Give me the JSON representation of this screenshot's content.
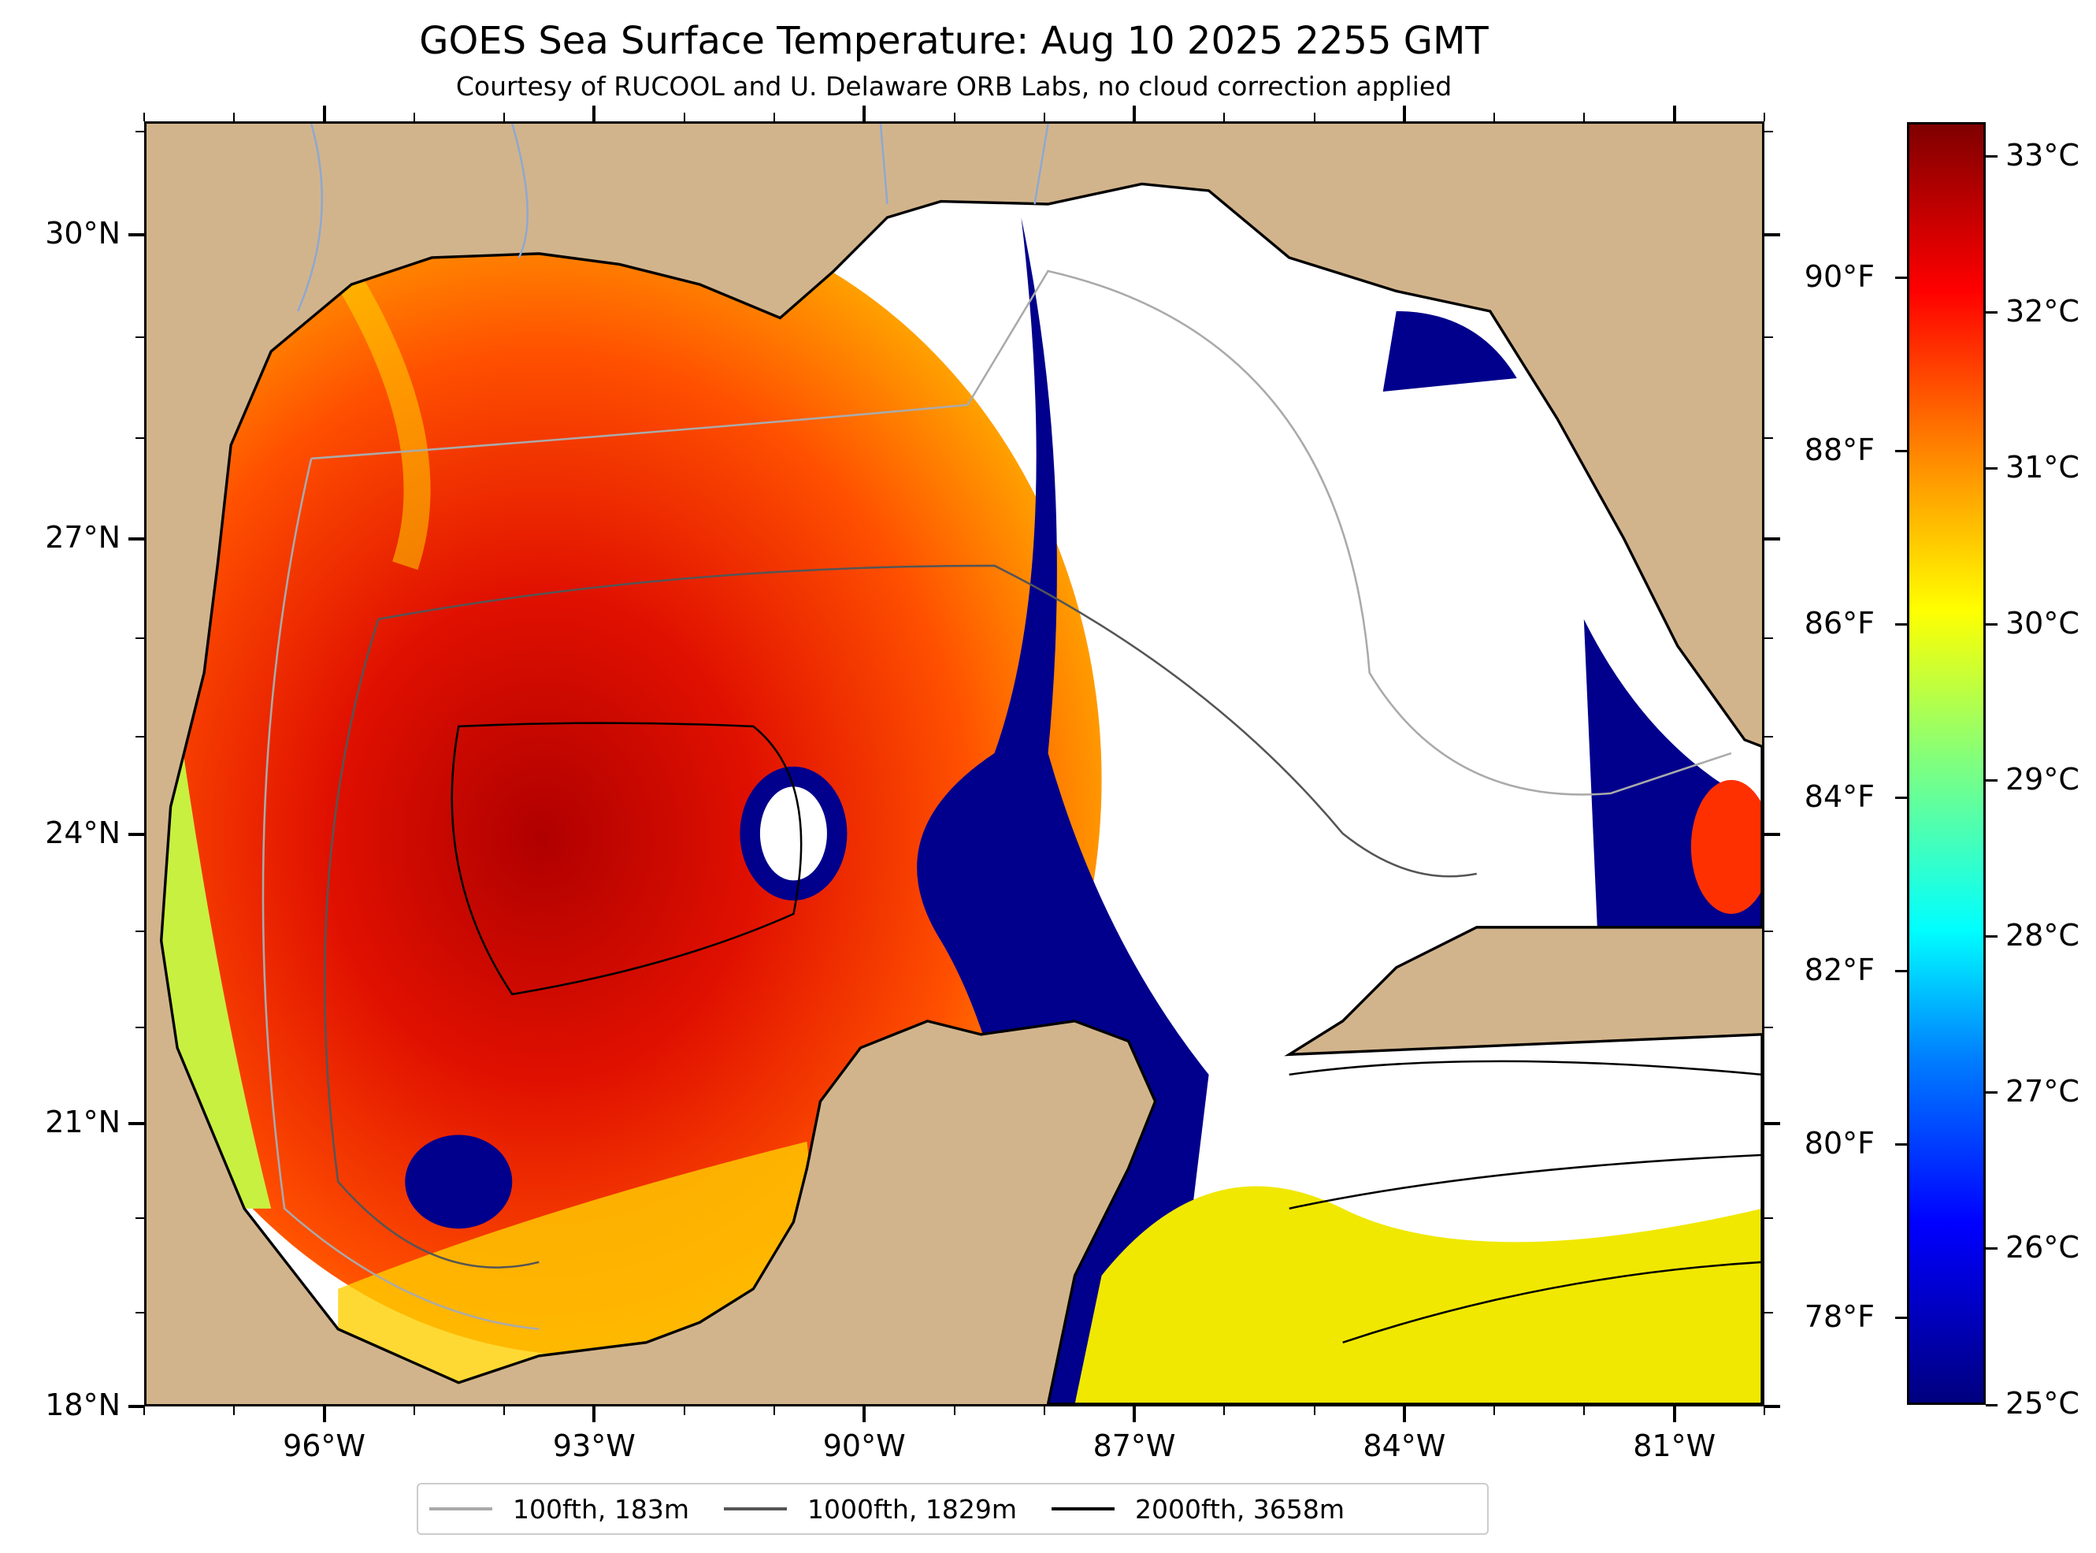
{
  "title": "GOES Sea Surface Temperature: Aug 10 2025 2255 GMT",
  "subtitle": "Courtesy of RUCOOL and U. Delaware ORB Labs, no cloud correction applied",
  "map": {
    "lon_range": [
      -98,
      -80
    ],
    "lat_range": [
      18,
      31.1
    ],
    "lon_ticks": [
      {
        "value": -96,
        "label": "96°W"
      },
      {
        "value": -93,
        "label": "93°W"
      },
      {
        "value": -90,
        "label": "90°W"
      },
      {
        "value": -87,
        "label": "87°W"
      },
      {
        "value": -84,
        "label": "84°W"
      },
      {
        "value": -81,
        "label": "81°W"
      }
    ],
    "lat_ticks": [
      {
        "value": 18,
        "label": "18°N"
      },
      {
        "value": 21,
        "label": "21°N"
      },
      {
        "value": 24,
        "label": "24°N"
      },
      {
        "value": 27,
        "label": "27°N"
      },
      {
        "value": 30,
        "label": "30°N"
      }
    ],
    "colors": {
      "land": "#d2b48c",
      "cloud": "#ffffff",
      "rivers": "#8fa8d0"
    }
  },
  "colorbar": {
    "range_c": [
      25,
      33.22
    ],
    "celsius_ticks": [
      {
        "value": 25,
        "label": "25°C"
      },
      {
        "value": 26,
        "label": "26°C"
      },
      {
        "value": 27,
        "label": "27°C"
      },
      {
        "value": 28,
        "label": "28°C"
      },
      {
        "value": 29,
        "label": "29°C"
      },
      {
        "value": 30,
        "label": "30°C"
      },
      {
        "value": 31,
        "label": "31°C"
      },
      {
        "value": 32,
        "label": "32°C"
      },
      {
        "value": 33,
        "label": "33°C"
      }
    ],
    "fahrenheit_ticks": [
      {
        "value": 78,
        "label": "78°F"
      },
      {
        "value": 80,
        "label": "80°F"
      },
      {
        "value": 82,
        "label": "82°F"
      },
      {
        "value": 84,
        "label": "84°F"
      },
      {
        "value": 86,
        "label": "86°F"
      },
      {
        "value": 88,
        "label": "88°F"
      },
      {
        "value": 90,
        "label": "90°F"
      }
    ],
    "colormap": "jet"
  },
  "legend": {
    "items": [
      {
        "label": "100fth, 183m",
        "color": "#aaaaaa"
      },
      {
        "label": "1000fth, 1829m",
        "color": "#555555"
      },
      {
        "label": "2000fth, 3658m",
        "color": "#000000"
      }
    ]
  }
}
